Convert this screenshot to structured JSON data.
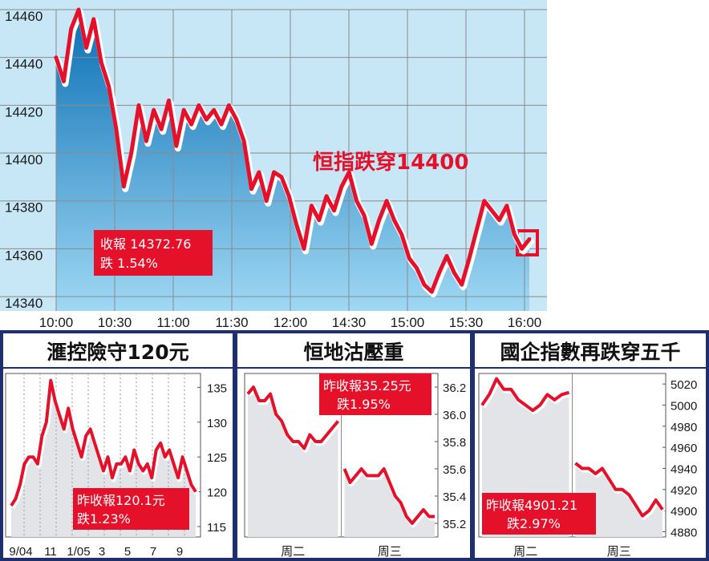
{
  "colors": {
    "line": "#e5102a",
    "navy": "#1f2f6e",
    "note_bg": "#e5102a",
    "main_fill_top": "#0a6fb4",
    "main_fill_bottom": "#9fd8f4",
    "small_fill": "#e2e4e8"
  },
  "main": {
    "headline": "恒指跌穿14400",
    "note_line1": "收報 14372.76",
    "note_line2": "跌 1.54%",
    "chart_data": {
      "type": "line",
      "title": "",
      "x_ticks": [
        "10:00",
        "10:30",
        "11:00",
        "11:30",
        "12:00",
        "14:30",
        "15:00",
        "15:30",
        "16:00"
      ],
      "y_ticks": [
        "14460",
        "14440",
        "14420",
        "14400",
        "14380",
        "14360",
        "14340"
      ],
      "ylim": [
        14334,
        14460
      ],
      "y": [
        14440,
        14430,
        14452,
        14460,
        14444,
        14456,
        14438,
        14428,
        14410,
        14386,
        14400,
        14420,
        14405,
        14418,
        14410,
        14422,
        14403,
        14418,
        14412,
        14420,
        14414,
        14418,
        14412,
        14420,
        14414,
        14405,
        14385,
        14392,
        14380,
        14392,
        14390,
        14382,
        14370,
        14360,
        14378,
        14372,
        14382,
        14376,
        14386,
        14392,
        14380,
        14374,
        14362,
        14372,
        14380,
        14372,
        14366,
        14356,
        14352,
        14345,
        14342,
        14350,
        14357,
        14350,
        14345,
        14356,
        14368,
        14380,
        14376,
        14372,
        14378,
        14366,
        14360,
        14364
      ]
    }
  },
  "panel1": {
    "title": "滙控險守120元",
    "note_line1": "昨收報120.1元",
    "note_line2": "跌1.23%",
    "chart_data": {
      "type": "line",
      "x_ticks": [
        "9/04",
        "11",
        "1/05",
        "3",
        "5",
        "7",
        "9"
      ],
      "y_ticks": [
        "135",
        "130",
        "125",
        "120",
        "115"
      ],
      "ylim": [
        113.5,
        137
      ],
      "y": [
        118,
        119,
        121,
        124,
        125,
        125,
        124,
        128,
        130,
        136,
        133,
        131,
        129,
        132,
        129,
        127,
        125,
        128,
        129,
        127,
        125,
        123,
        125,
        122,
        124,
        124,
        125,
        123,
        126,
        124,
        123,
        124,
        122,
        126,
        127,
        125,
        126,
        124,
        122,
        125,
        123,
        121,
        120
      ]
    }
  },
  "panel2": {
    "title": "恒地沽壓重",
    "note_line1": "昨收報35.25元",
    "note_line2": "跌1.95%",
    "chart_data": {
      "type": "line",
      "x_ticks": [
        "周二",
        "周三"
      ],
      "y_ticks": [
        "36.2",
        "36.0",
        "35.8",
        "35.6",
        "35.4",
        "35.2"
      ],
      "ylim": [
        35.1,
        36.3
      ],
      "segments": [
        [
          36.15,
          36.2,
          36.1,
          36.1,
          36.15,
          36.0,
          35.95,
          35.85,
          35.8,
          35.8,
          35.75,
          35.85,
          35.8,
          35.8,
          35.85,
          35.9,
          35.95
        ],
        [
          35.6,
          35.5,
          35.55,
          35.6,
          35.55,
          35.55,
          35.55,
          35.6,
          35.5,
          35.4,
          35.35,
          35.25,
          35.2,
          35.25,
          35.3,
          35.25,
          35.25
        ]
      ]
    }
  },
  "panel3": {
    "title": "國企指數再跌穿五千",
    "note_line1": "昨收報4901.21",
    "note_line2": "跌2.97%",
    "chart_data": {
      "type": "line",
      "x_ticks": [
        "周二",
        "周三"
      ],
      "y_ticks": [
        "5020",
        "5000",
        "4980",
        "4960",
        "4940",
        "4920",
        "4900",
        "4880"
      ],
      "ylim": [
        4875,
        5030
      ],
      "segments": [
        [
          5000,
          5010,
          5025,
          5015,
          5015,
          5005,
          5000,
          4995,
          5000,
          5010,
          5005,
          5010,
          5012
        ],
        [
          4945,
          4940,
          4940,
          4935,
          4940,
          4930,
          4920,
          4920,
          4915,
          4905,
          4895,
          4900,
          4910,
          4901
        ]
      ]
    }
  }
}
